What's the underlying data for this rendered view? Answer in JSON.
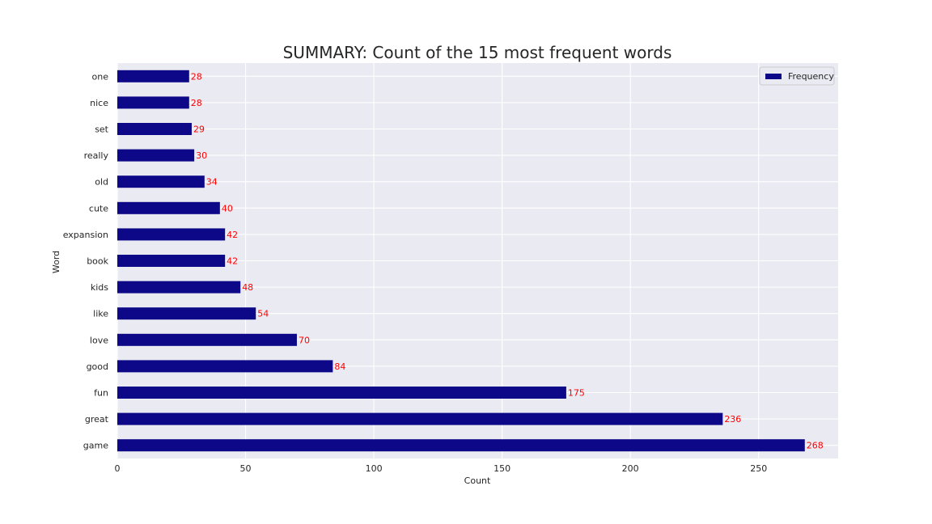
{
  "chart_data": {
    "type": "bar",
    "orientation": "horizontal",
    "title": "SUMMARY: Count of the 15 most frequent words",
    "xlabel": "Count",
    "ylabel": "Word",
    "categories": [
      "game",
      "great",
      "fun",
      "good",
      "love",
      "like",
      "kids",
      "book",
      "expansion",
      "cute",
      "old",
      "really",
      "set",
      "nice",
      "one"
    ],
    "series": [
      {
        "name": "Frequency",
        "values": [
          268,
          236,
          175,
          84,
          70,
          54,
          48,
          42,
          42,
          40,
          34,
          30,
          29,
          28,
          28
        ]
      }
    ],
    "xlim": [
      0,
      281
    ],
    "xticks": [
      0,
      50,
      100,
      150,
      200,
      250
    ],
    "grid": true,
    "legend_position": "top-right",
    "colors": {
      "bar": "#0d0887",
      "value_label": "#ff0000",
      "plot_background": "#eaeaf2",
      "grid": "#ffffff"
    }
  }
}
